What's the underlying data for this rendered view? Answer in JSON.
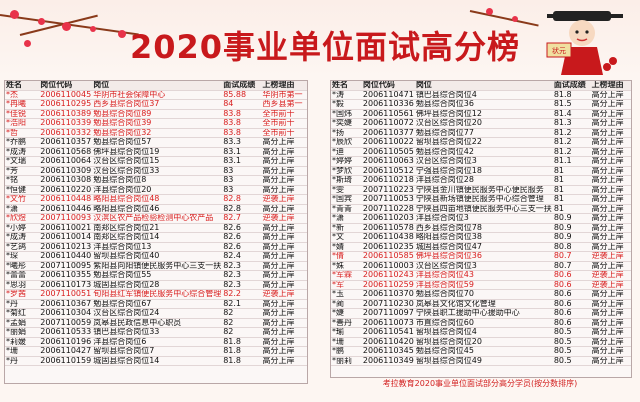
{
  "title": "2020事业单位面试高分榜",
  "mascot_text": "状元",
  "footer": "考拉教育2020事业单位面试部分高分学员(按分数排序)",
  "colors": {
    "title": "#c8191c",
    "highlight": "#d81d1d"
  },
  "headers": [
    "姓名",
    "岗位代码",
    "岗位",
    "面试成绩",
    "上榜理由"
  ],
  "left_rows": [
    [
      "*杰",
      "2006110045",
      "华阴市社会保障中心",
      "85.88",
      "华阴市第一",
      true
    ],
    [
      "*冉曦",
      "2006110295",
      "西乡县综合岗位37",
      "84",
      "西乡县第一",
      true
    ],
    [
      "*佳锐",
      "2006110389",
      "勉县综合岗位89",
      "83.8",
      "全市前十",
      true
    ],
    [
      "*浩阳",
      "2006110339",
      "勉县综合岗位39",
      "83.8",
      "全市前十",
      true
    ],
    [
      "*哲",
      "2006110332",
      "勉县综合岗位32",
      "83.8",
      "全市前十",
      true
    ],
    [
      "*乔鹏",
      "2006110357",
      "勉县综合岗位57",
      "83.3",
      "高分上岸",
      false
    ],
    [
      "*成涛",
      "2006110568",
      "佛坪县综合岗位19",
      "83.1",
      "高分上岸",
      false
    ],
    [
      "*文瑞",
      "2006110064",
      "汉台区综合岗位15",
      "83.1",
      "高分上岸",
      false
    ],
    [
      "*芳",
      "2006110309",
      "汉台区综合岗位33",
      "83",
      "高分上岸",
      false
    ],
    [
      "*铭",
      "2006110308",
      "勉县综合岗位8",
      "83",
      "高分上岸",
      false
    ],
    [
      "*恒健",
      "2006110220",
      "洋县综合岗位20",
      "83",
      "高分上岸",
      false
    ],
    [
      "*文竹",
      "2006110448",
      "略阳县综合岗位48",
      "82.8",
      "逆袭上岸",
      true
    ],
    [
      "*潇",
      "2006110446",
      "略阳县综合岗位46",
      "82.8",
      "高分上岸",
      false
    ],
    [
      "*欣煜",
      "2007110093",
      "汉滨区农产品检验检测中心农产品",
      "82.7",
      "逆袭上岸",
      true
    ],
    [
      "*小婷",
      "2006110021",
      "南郑区综合岗位21",
      "82.6",
      "高分上岸",
      false
    ],
    [
      "*成涛",
      "2006110014",
      "南郑区综合岗位14",
      "82.6",
      "高分上岸",
      false
    ],
    [
      "*艺鸽",
      "2006110213",
      "洋县综合岗位13",
      "82.6",
      "高分上岸",
      false
    ],
    [
      "*琛",
      "2006110440",
      "留坝县综合岗位40",
      "82.4",
      "高分上岸",
      false
    ],
    [
      "*曦彤",
      "2007110095",
      "紫阳县向阳镇便民服务中心三支一扶",
      "82.3",
      "高分上岸",
      false
    ],
    [
      "*蕾蕾",
      "2006110355",
      "勉县综合岗位55",
      "82.3",
      "高分上岸",
      false
    ],
    [
      "*思羽",
      "2006110173",
      "城固县综合岗位28",
      "82.3",
      "高分上岸",
      false
    ],
    [
      "*罗茜",
      "2007110051",
      "旬阳县红军镇便民服务中心综合管理",
      "82.2",
      "逆袭上岸",
      true
    ],
    [
      "*丹",
      "2006110367",
      "勉县综合岗位67",
      "82.1",
      "高分上岸",
      false
    ],
    [
      "*菊红",
      "2006110304",
      "汉台区综合岗位24",
      "82",
      "高分上岸",
      false
    ],
    [
      "*孟娟",
      "2007110059",
      "岚皋县民政信息中心职员",
      "82",
      "高分上岸",
      false
    ],
    [
      "*丽娟",
      "2006110533",
      "镇巴县综合岗位33",
      "82",
      "高分上岸",
      false
    ],
    [
      "*莉媛",
      "2006110196",
      "洋县综合岗位6",
      "81.8",
      "高分上岸",
      false
    ],
    [
      "*珊",
      "2006110427",
      "留坝县综合岗位7",
      "81.8",
      "高分上岸",
      false
    ],
    [
      "*丹",
      "2006110159",
      "城固县综合岗位14",
      "81.8",
      "高分上岸",
      false
    ]
  ],
  "right_rows": [
    [
      "*涛",
      "2006110471",
      "镇巴县综合岗位4",
      "81.8",
      "高分上岸",
      false
    ],
    [
      "*毅",
      "2006110336",
      "勉县综合岗位36",
      "81.5",
      "高分上岸",
      false
    ],
    [
      "*国炜",
      "2006110561",
      "佛坪县综合岗位12",
      "81.4",
      "高分上岸",
      false
    ],
    [
      "*奕婕",
      "2006110072",
      "汉台区综合岗位20",
      "81.3",
      "高分上岸",
      false
    ],
    [
      "*扬",
      "2006110377",
      "勉县综合岗位77",
      "81.2",
      "高分上岸",
      false
    ],
    [
      "*辰欣",
      "2006110022",
      "留坝县综合岗位22",
      "81.2",
      "高分上岸",
      false
    ],
    [
      "*迪",
      "2006110505",
      "勉县综合岗位42",
      "81.2",
      "高分上岸",
      false
    ],
    [
      "*婷婷",
      "2006110063",
      "汉台区综合岗位3",
      "81.1",
      "高分上岸",
      false
    ],
    [
      "*梦欣",
      "2006110512",
      "宁强县综合岗位18",
      "81",
      "高分上岸",
      false
    ],
    [
      "*斯琦",
      "2006110218",
      "洋县综合岗位28",
      "81",
      "高分上岸",
      false
    ],
    [
      "*雯",
      "2007110223",
      "宁陕县金川镇便民服务中心便民服务",
      "81",
      "高分上岸",
      false
    ],
    [
      "*国宾",
      "2007110053",
      "宁陕县新场镇便民服务中心综合管理",
      "81",
      "高分上岸",
      false
    ],
    [
      "*青青",
      "2007110228",
      "宁陕县四亩地镇便民服务中心三支一扶",
      "81",
      "高分上岸",
      false
    ],
    [
      "*潇",
      "2006110203",
      "洋县综合岗位3",
      "80.9",
      "高分上岸",
      false
    ],
    [
      "*新",
      "2006110578",
      "西乡县综合岗位78",
      "80.9",
      "高分上岸",
      false
    ],
    [
      "*文",
      "2006110438",
      "略阳县综合岗位38",
      "80.9",
      "高分上岸",
      false
    ],
    [
      "*婧",
      "2006110235",
      "城固县综合岗位47",
      "80.8",
      "高分上岸",
      false
    ],
    [
      "*倩",
      "2006110585",
      "佛坪县综合岗位36",
      "80.7",
      "逆袭上岸",
      true
    ],
    [
      "*姝",
      "2006110003",
      "汉台区综合岗位3",
      "80.7",
      "高分上岸",
      false
    ],
    [
      "*军霖",
      "2006110243",
      "洋县综合岗位43",
      "80.6",
      "逆袭上岸",
      true
    ],
    [
      "*军",
      "2006110259",
      "洋县综合岗位59",
      "80.6",
      "逆袭上岸",
      true
    ],
    [
      "*玉",
      "2006110370",
      "勉县综合岗位70",
      "80.6",
      "高分上岸",
      false
    ],
    [
      "*蔺",
      "2007110230",
      "岚皋县文化馆文化管理",
      "80.6",
      "高分上岸",
      false
    ],
    [
      "*婕",
      "2007110097",
      "宁陕县职工援助中心援助中心",
      "80.6",
      "高分上岸",
      false
    ],
    [
      "*善丹",
      "2006110073",
      "市直综合岗位60",
      "80.6",
      "高分上岸",
      false
    ],
    [
      "*瑜",
      "2006110541",
      "留坝县综合岗位4",
      "80.5",
      "高分上岸",
      false
    ],
    [
      "*珊",
      "2006110420",
      "留坝县综合岗位20",
      "80.5",
      "高分上岸",
      false
    ],
    [
      "*鹏",
      "2006110345",
      "勉县综合岗位45",
      "80.5",
      "高分上岸",
      false
    ],
    [
      "*丽莉",
      "2006110349",
      "留坝县综合岗位49",
      "80.5",
      "高分上岸",
      false
    ]
  ]
}
